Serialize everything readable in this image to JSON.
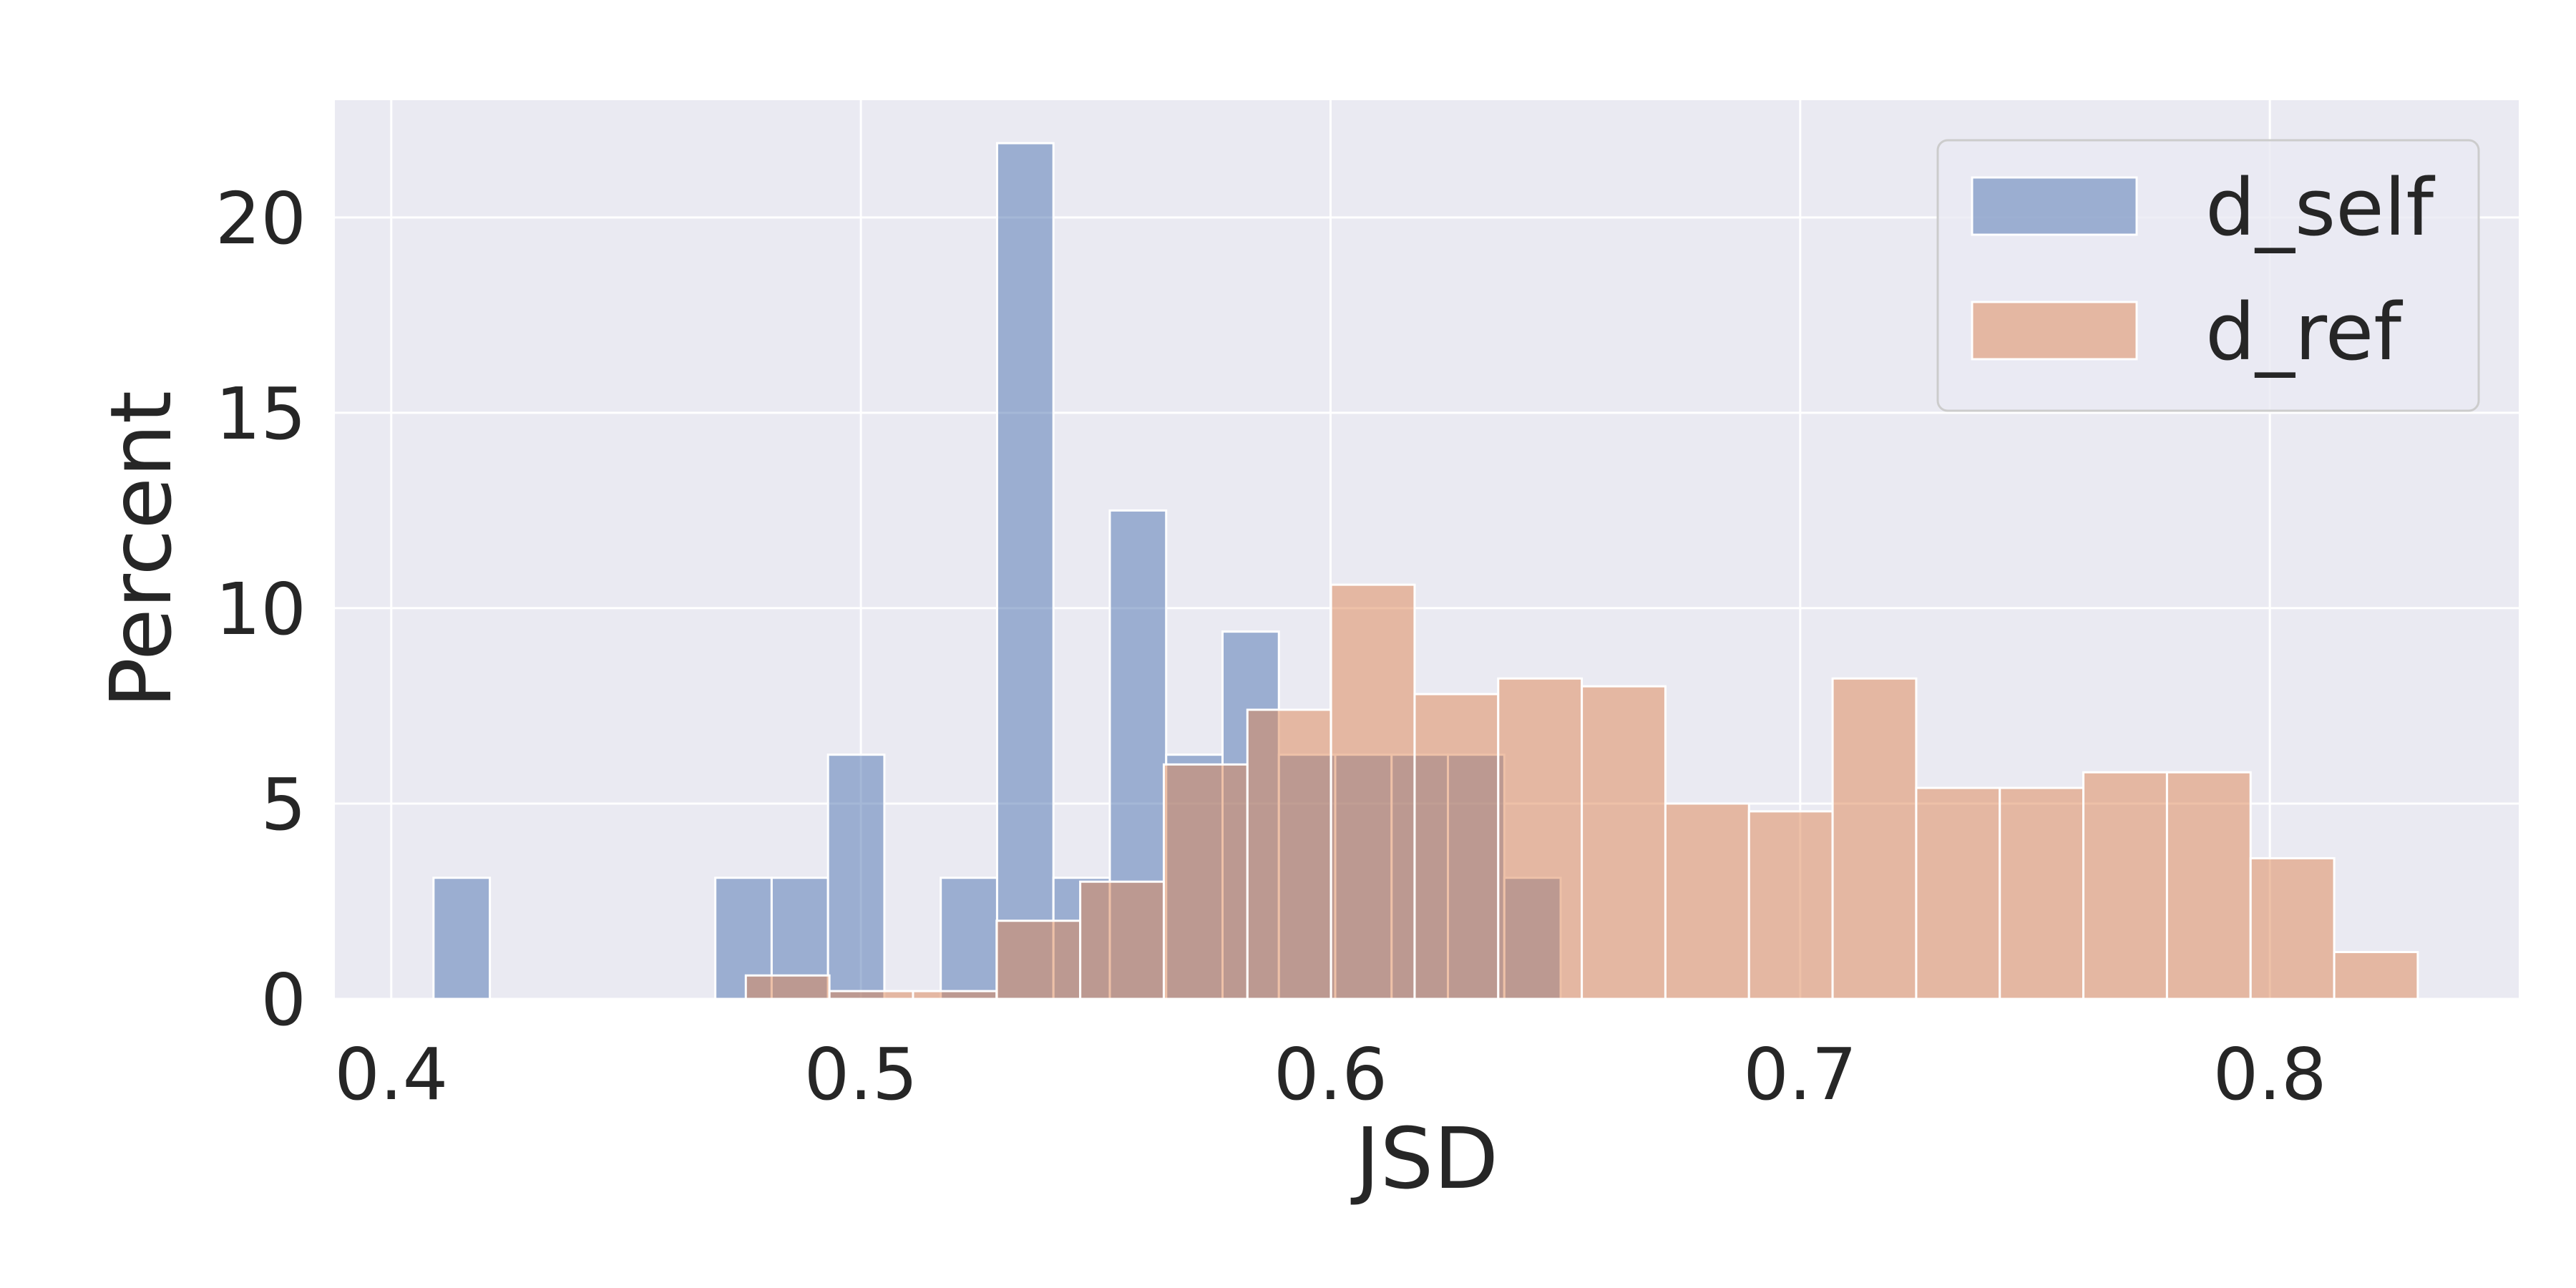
{
  "chart_data": {
    "type": "histogram",
    "xlabel": "JSD",
    "ylabel": "Percent",
    "xlim": [
      0.388,
      0.853
    ],
    "ylim": [
      0,
      23
    ],
    "x_ticks": [
      "0.4",
      "0.5",
      "0.6",
      "0.7",
      "0.8"
    ],
    "y_ticks": [
      "0",
      "5",
      "10",
      "15",
      "20"
    ],
    "grid": true,
    "legend_position": "top-right",
    "colors": {
      "background": "#eaeaf2",
      "grid": "#ffffff",
      "d_self": "#4c72b0",
      "d_ref": "#dd8452",
      "text": "#262626"
    },
    "series": [
      {
        "name": "d_self",
        "bins": [
          {
            "x0": 0.409,
            "x1": 0.421,
            "value": 3.1
          },
          {
            "x0": 0.469,
            "x1": 0.481,
            "value": 3.1
          },
          {
            "x0": 0.481,
            "x1": 0.493,
            "value": 3.1
          },
          {
            "x0": 0.493,
            "x1": 0.505,
            "value": 6.25
          },
          {
            "x0": 0.517,
            "x1": 0.529,
            "value": 3.1
          },
          {
            "x0": 0.529,
            "x1": 0.541,
            "value": 21.9
          },
          {
            "x0": 0.541,
            "x1": 0.553,
            "value": 3.1
          },
          {
            "x0": 0.553,
            "x1": 0.565,
            "value": 12.5
          },
          {
            "x0": 0.565,
            "x1": 0.577,
            "value": 6.25
          },
          {
            "x0": 0.577,
            "x1": 0.589,
            "value": 9.4
          },
          {
            "x0": 0.589,
            "x1": 0.601,
            "value": 6.25
          },
          {
            "x0": 0.601,
            "x1": 0.613,
            "value": 6.25
          },
          {
            "x0": 0.613,
            "x1": 0.625,
            "value": 6.25
          },
          {
            "x0": 0.625,
            "x1": 0.637,
            "value": 6.25
          },
          {
            "x0": 0.637,
            "x1": 0.649,
            "value": 3.1
          }
        ]
      },
      {
        "name": "d_ref",
        "bins": [
          {
            "x0": 0.4755,
            "x1": 0.4933,
            "value": 0.6
          },
          {
            "x0": 0.4933,
            "x1": 0.5111,
            "value": 0.2
          },
          {
            "x0": 0.5111,
            "x1": 0.5289,
            "value": 0.2
          },
          {
            "x0": 0.5289,
            "x1": 0.5467,
            "value": 2.0
          },
          {
            "x0": 0.5467,
            "x1": 0.5645,
            "value": 3.0
          },
          {
            "x0": 0.5645,
            "x1": 0.5823,
            "value": 6.0
          },
          {
            "x0": 0.5823,
            "x1": 0.6001,
            "value": 7.4
          },
          {
            "x0": 0.6001,
            "x1": 0.6179,
            "value": 10.6
          },
          {
            "x0": 0.6179,
            "x1": 0.6357,
            "value": 7.8
          },
          {
            "x0": 0.6357,
            "x1": 0.6535,
            "value": 8.2
          },
          {
            "x0": 0.6535,
            "x1": 0.6713,
            "value": 8.0
          },
          {
            "x0": 0.6713,
            "x1": 0.6891,
            "value": 5.0
          },
          {
            "x0": 0.6891,
            "x1": 0.7069,
            "value": 4.8
          },
          {
            "x0": 0.7069,
            "x1": 0.7247,
            "value": 8.2
          },
          {
            "x0": 0.7247,
            "x1": 0.7425,
            "value": 5.4
          },
          {
            "x0": 0.7425,
            "x1": 0.7603,
            "value": 5.4
          },
          {
            "x0": 0.7603,
            "x1": 0.7781,
            "value": 5.8
          },
          {
            "x0": 0.7781,
            "x1": 0.7959,
            "value": 5.8
          },
          {
            "x0": 0.7959,
            "x1": 0.8137,
            "value": 3.6
          },
          {
            "x0": 0.8137,
            "x1": 0.8315,
            "value": 1.2
          }
        ]
      }
    ]
  }
}
